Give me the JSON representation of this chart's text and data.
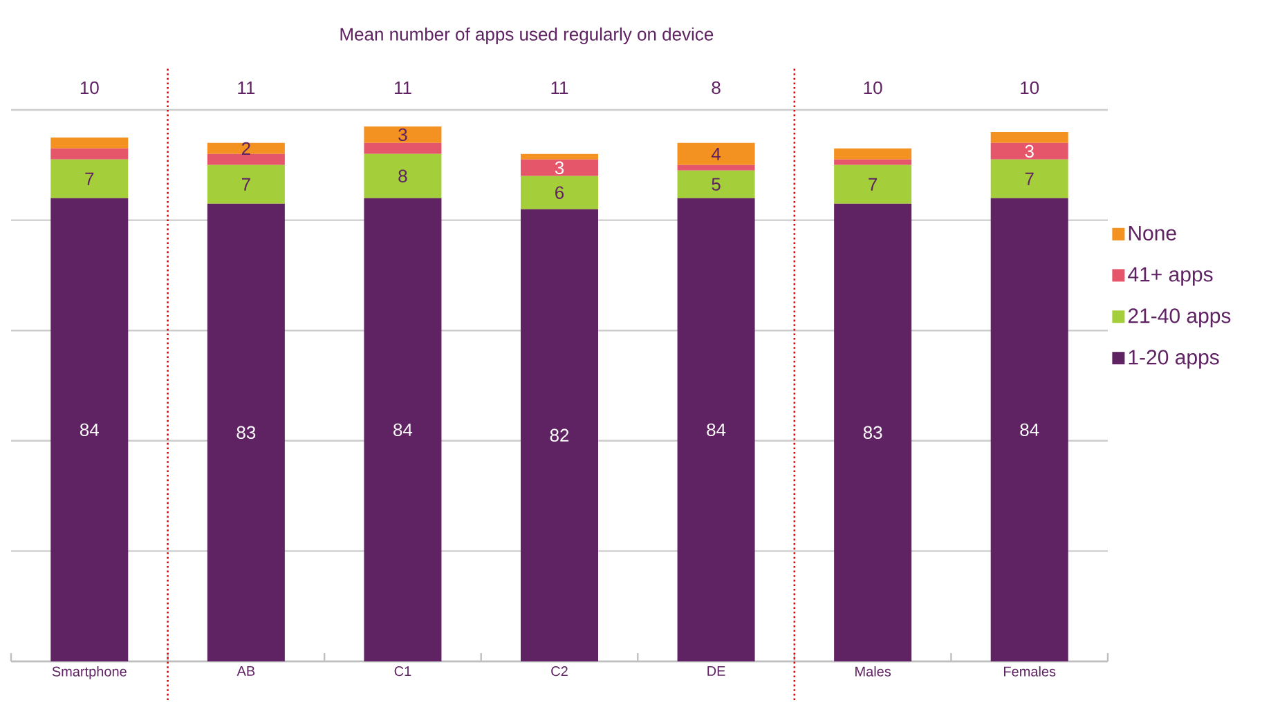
{
  "chart_data": {
    "type": "bar",
    "stacked": true,
    "title": "Mean number of apps used regularly on device",
    "categories": [
      "Smartphone",
      "AB",
      "C1",
      "C2",
      "DE",
      "Males",
      "Females"
    ],
    "series": [
      {
        "name": "1-20 apps",
        "color": "#5f2262",
        "values": [
          84,
          83,
          84,
          82,
          84,
          83,
          84
        ],
        "value_labels": [
          "84",
          "83",
          "84",
          "82",
          "84",
          "83",
          "84"
        ]
      },
      {
        "name": "21-40 apps",
        "color": "#a5cf3a",
        "values": [
          7,
          7,
          8,
          6,
          5,
          7,
          7
        ],
        "value_labels": [
          "7",
          "7",
          "8",
          "6",
          "5",
          "7",
          "7"
        ]
      },
      {
        "name": "41+ apps",
        "color": "#e5566a",
        "values": [
          2,
          2,
          2,
          3,
          1,
          1,
          3
        ],
        "value_labels": [
          null,
          null,
          null,
          "3",
          null,
          null,
          "3"
        ]
      },
      {
        "name": "None",
        "color": "#f39121",
        "values": [
          2,
          2,
          3,
          1,
          4,
          2,
          2
        ],
        "value_labels": [
          null,
          "2",
          "3",
          null,
          "4",
          null,
          null
        ]
      }
    ],
    "annotations": [
      "10",
      "11",
      "11",
      "11",
      "8",
      "10",
      "10"
    ],
    "ylim": [
      0,
      100
    ],
    "yticks": [
      {
        "value": 0,
        "label": null
      },
      {
        "value": 20,
        "label": null
      },
      {
        "value": 40,
        "label": null
      },
      {
        "value": 60,
        "label": null
      },
      {
        "value": 80,
        "label": null
      },
      {
        "value": 100,
        "label": null
      }
    ],
    "tick_labels": "x",
    "grid": "y",
    "legend": "right"
  }
}
